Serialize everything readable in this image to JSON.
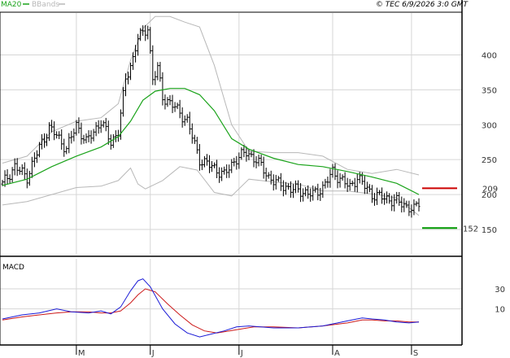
{
  "legend": {
    "ma_label": "MA20",
    "bbands_label": "BBands",
    "ma_color": "#1aa31a",
    "bbands_color": "#b8b8b8"
  },
  "credit": "© TEC 6/9/2026 3:0 GMT",
  "colors": {
    "grid": "#d6d6d6",
    "axis": "#000000",
    "resistance": "#cc0000",
    "support": "#009900",
    "macd_line": "#1a1ad6",
    "signal_line": "#cc1a1a",
    "bars": "#000000"
  },
  "chart_data": [
    {
      "type": "ohlc",
      "panel": "price",
      "ylim": [
        115,
        460
      ],
      "y_ticks": [
        150,
        200,
        250,
        300,
        350,
        400
      ],
      "x_month_labels": [
        {
          "label": "M",
          "index": 30
        },
        {
          "label": "J",
          "index": 60
        },
        {
          "label": "J",
          "index": 96
        },
        {
          "label": "A",
          "index": 134
        },
        {
          "label": "S",
          "index": 166
        }
      ],
      "levels": {
        "resistance": {
          "value": 209,
          "label": "209"
        },
        "support": {
          "value": 152,
          "label": "152"
        }
      },
      "series": [
        {
          "name": "MA20",
          "points": [
            [
              0,
              213
            ],
            [
              10,
              222
            ],
            [
              20,
              240
            ],
            [
              30,
              255
            ],
            [
              40,
              268
            ],
            [
              47,
              283
            ],
            [
              52,
              305
            ],
            [
              57,
              335
            ],
            [
              62,
              348
            ],
            [
              68,
              352
            ],
            [
              74,
              352
            ],
            [
              80,
              343
            ],
            [
              86,
              320
            ],
            [
              93,
              280
            ],
            [
              100,
              265
            ],
            [
              110,
              252
            ],
            [
              120,
              243
            ],
            [
              130,
              240
            ],
            [
              140,
              233
            ],
            [
              150,
              225
            ],
            [
              160,
              216
            ],
            [
              169,
              200
            ]
          ]
        },
        {
          "name": "BBands upper",
          "points": [
            [
              0,
              245
            ],
            [
              10,
              255
            ],
            [
              20,
              290
            ],
            [
              30,
              305
            ],
            [
              40,
              310
            ],
            [
              47,
              330
            ],
            [
              52,
              392
            ],
            [
              57,
              438
            ],
            [
              62,
              455
            ],
            [
              68,
              455
            ],
            [
              74,
              447
            ],
            [
              80,
              440
            ],
            [
              86,
              385
            ],
            [
              93,
              300
            ],
            [
              100,
              262
            ],
            [
              110,
              260
            ],
            [
              120,
              260
            ],
            [
              130,
              255
            ],
            [
              140,
              236
            ],
            [
              150,
              230
            ],
            [
              160,
              236
            ],
            [
              169,
              228
            ]
          ]
        },
        {
          "name": "BBands lower",
          "points": [
            [
              0,
              185
            ],
            [
              10,
              190
            ],
            [
              20,
              200
            ],
            [
              30,
              210
            ],
            [
              40,
              212
            ],
            [
              47,
              220
            ],
            [
              52,
              238
            ],
            [
              55,
              215
            ],
            [
              58,
              208
            ],
            [
              65,
              220
            ],
            [
              72,
              240
            ],
            [
              79,
              235
            ],
            [
              86,
              203
            ],
            [
              93,
              198
            ],
            [
              100,
              222
            ],
            [
              110,
              218
            ],
            [
              120,
              215
            ],
            [
              130,
              205
            ],
            [
              140,
              205
            ],
            [
              150,
              201
            ],
            [
              160,
              195
            ],
            [
              169,
              170
            ]
          ]
        }
      ],
      "close_path": [
        [
          0,
          215
        ],
        [
          5,
          240
        ],
        [
          10,
          225
        ],
        [
          15,
          268
        ],
        [
          19,
          295
        ],
        [
          22,
          285
        ],
        [
          26,
          265
        ],
        [
          30,
          300
        ],
        [
          34,
          275
        ],
        [
          40,
          305
        ],
        [
          44,
          275
        ],
        [
          47,
          290
        ],
        [
          50,
          365
        ],
        [
          53,
          395
        ],
        [
          55,
          425
        ],
        [
          57,
          430
        ],
        [
          59,
          440
        ],
        [
          61,
          365
        ],
        [
          63,
          380
        ],
        [
          65,
          340
        ],
        [
          70,
          325
        ],
        [
          75,
          305
        ],
        [
          80,
          250
        ],
        [
          85,
          240
        ],
        [
          90,
          228
        ],
        [
          95,
          252
        ],
        [
          99,
          260
        ],
        [
          103,
          250
        ],
        [
          108,
          225
        ],
        [
          112,
          215
        ],
        [
          117,
          208
        ],
        [
          121,
          205
        ],
        [
          126,
          200
        ],
        [
          130,
          210
        ],
        [
          134,
          232
        ],
        [
          138,
          220
        ],
        [
          141,
          210
        ],
        [
          144,
          225
        ],
        [
          147,
          212
        ],
        [
          150,
          200
        ],
        [
          155,
          195
        ],
        [
          160,
          190
        ],
        [
          165,
          182
        ],
        [
          167,
          178
        ],
        [
          169,
          188
        ]
      ]
    },
    {
      "type": "line",
      "panel": "MACD",
      "title": "MACD",
      "ylim": [
        -26,
        60
      ],
      "y_ticks": [
        10,
        30
      ],
      "series": [
        {
          "name": "MACD",
          "points": [
            [
              0,
              0
            ],
            [
              8,
              4
            ],
            [
              15,
              6
            ],
            [
              22,
              10
            ],
            [
              28,
              7
            ],
            [
              35,
              6
            ],
            [
              40,
              8
            ],
            [
              44,
              5
            ],
            [
              48,
              12
            ],
            [
              52,
              28
            ],
            [
              55,
              38
            ],
            [
              57,
              40
            ],
            [
              60,
              32
            ],
            [
              65,
              10
            ],
            [
              70,
              -5
            ],
            [
              75,
              -14
            ],
            [
              80,
              -18
            ],
            [
              85,
              -15
            ],
            [
              90,
              -12
            ],
            [
              95,
              -8
            ],
            [
              100,
              -7
            ],
            [
              110,
              -9
            ],
            [
              120,
              -9
            ],
            [
              130,
              -7
            ],
            [
              140,
              -2
            ],
            [
              146,
              1
            ],
            [
              150,
              0
            ],
            [
              155,
              -1
            ],
            [
              160,
              -3
            ],
            [
              165,
              -4
            ],
            [
              169,
              -3
            ]
          ]
        },
        {
          "name": "Signal",
          "points": [
            [
              0,
              -1
            ],
            [
              8,
              2
            ],
            [
              15,
              4
            ],
            [
              22,
              6
            ],
            [
              28,
              7
            ],
            [
              35,
              7
            ],
            [
              40,
              6
            ],
            [
              44,
              6
            ],
            [
              48,
              8
            ],
            [
              52,
              16
            ],
            [
              55,
              24
            ],
            [
              58,
              30
            ],
            [
              62,
              27
            ],
            [
              67,
              15
            ],
            [
              72,
              4
            ],
            [
              77,
              -6
            ],
            [
              82,
              -12
            ],
            [
              87,
              -14
            ],
            [
              92,
              -12
            ],
            [
              97,
              -10
            ],
            [
              102,
              -8
            ],
            [
              110,
              -8
            ],
            [
              120,
              -9
            ],
            [
              130,
              -7
            ],
            [
              140,
              -4
            ],
            [
              146,
              -1
            ],
            [
              150,
              -1
            ],
            [
              155,
              -2
            ],
            [
              160,
              -2
            ],
            [
              165,
              -3
            ],
            [
              169,
              -3
            ]
          ]
        }
      ]
    }
  ]
}
